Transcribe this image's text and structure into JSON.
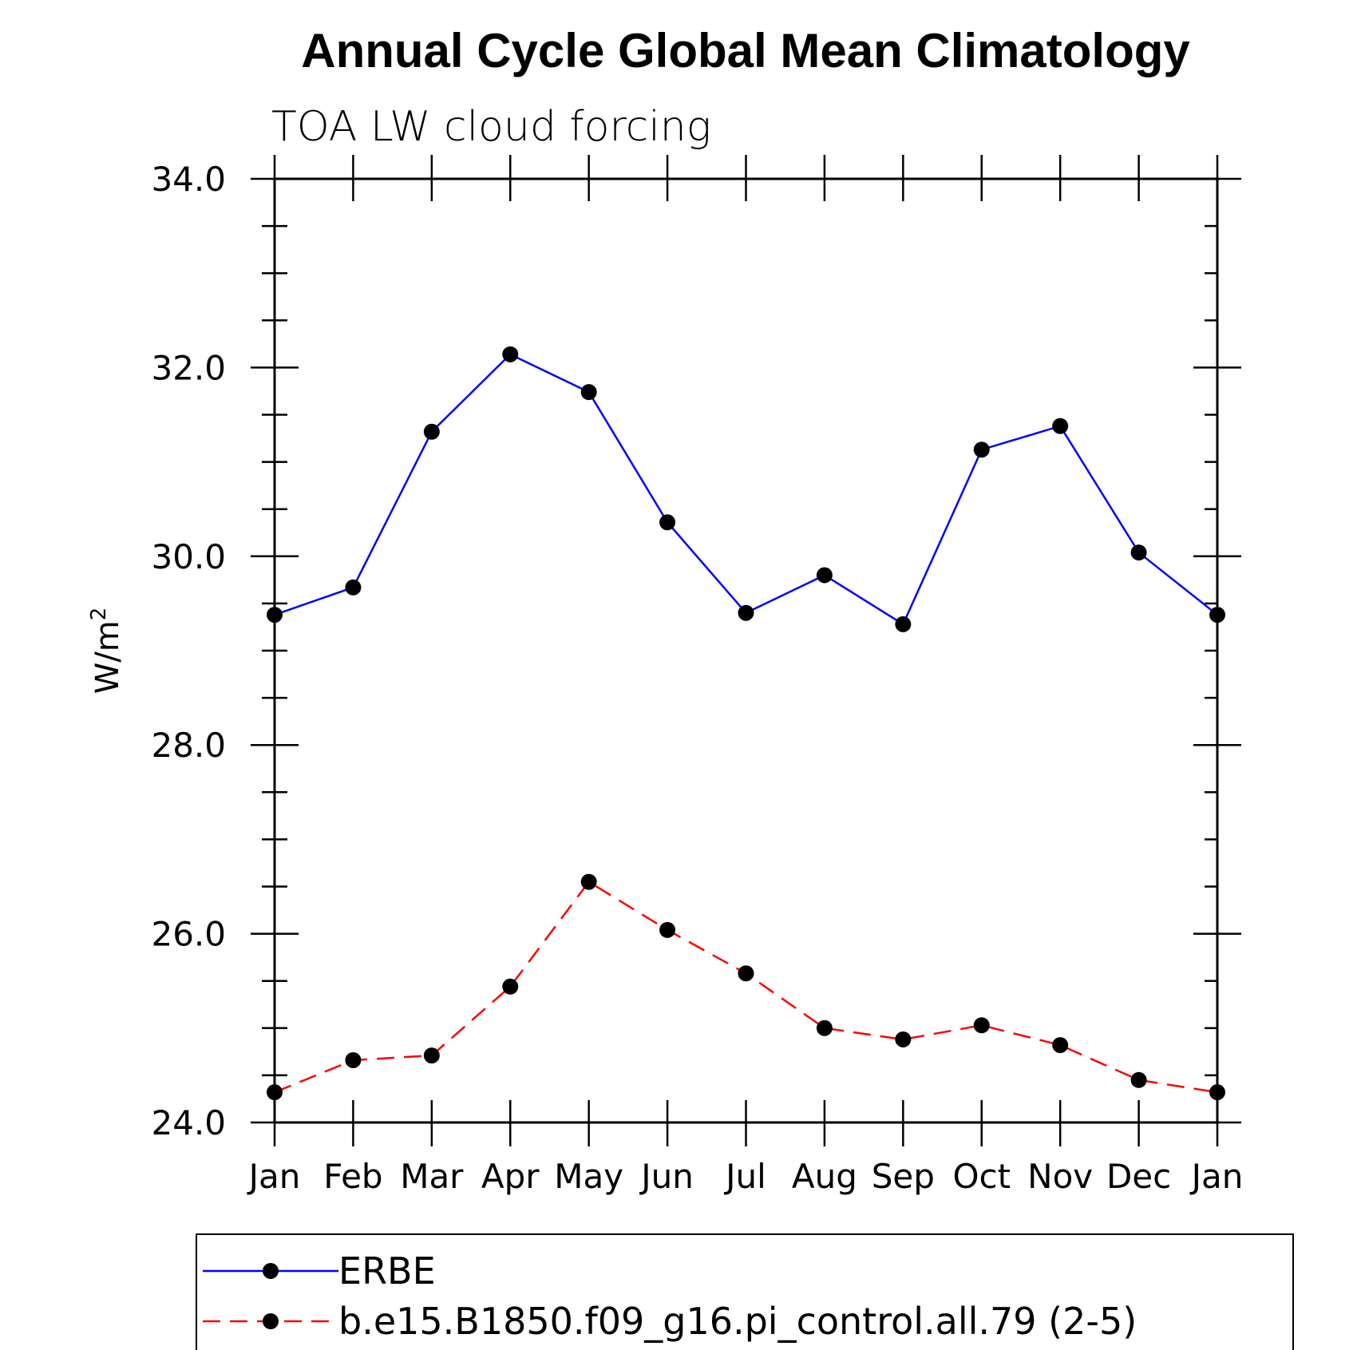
{
  "chart_data": {
    "type": "line",
    "title": "Annual Cycle Global Mean Climatology",
    "subtitle": "TOA LW cloud forcing",
    "ylabel_base": "W/m",
    "ylabel_sup": "2",
    "xlabel": "",
    "categories": [
      "Jan",
      "Feb",
      "Mar",
      "Apr",
      "May",
      "Jun",
      "Jul",
      "Aug",
      "Sep",
      "Oct",
      "Nov",
      "Dec",
      "Jan"
    ],
    "ylim": [
      24.0,
      34.0
    ],
    "yticks": [
      "24.0",
      "26.0",
      "28.0",
      "30.0",
      "32.0",
      "34.0"
    ],
    "series": [
      {
        "name": "ERBE",
        "color": "#0000ff",
        "dash": "solid",
        "values": [
          29.38,
          29.67,
          31.32,
          32.14,
          31.74,
          30.36,
          29.4,
          29.8,
          29.28,
          31.13,
          31.38,
          30.04,
          29.38
        ]
      },
      {
        "name": "b.e15.B1850.f09_g16.pi_control.all.79 (2-5)",
        "color": "#ff0000",
        "dash": "dashed",
        "values": [
          24.32,
          24.66,
          24.71,
          25.44,
          26.55,
          26.04,
          25.58,
          25.0,
          24.88,
          25.03,
          24.82,
          24.45,
          24.32
        ]
      }
    ],
    "grid": false,
    "legend_position": "bottom"
  }
}
